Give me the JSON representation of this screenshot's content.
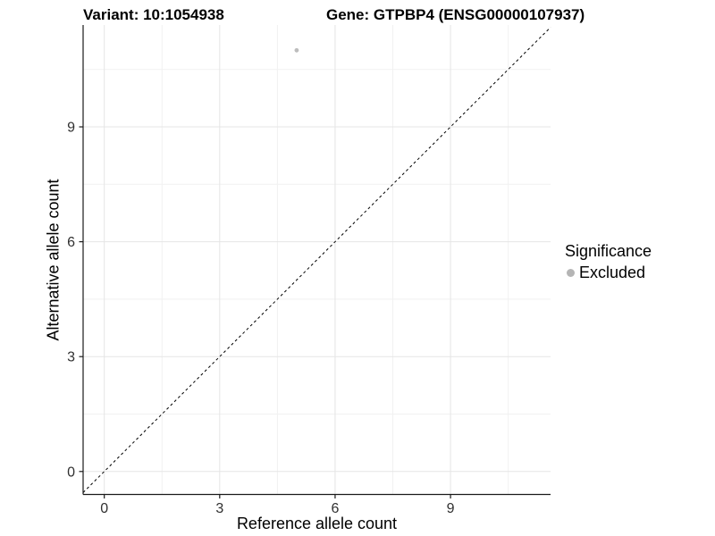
{
  "chart_data": {
    "type": "scatter",
    "title_left": "Variant: 10:1054938",
    "title_right": "Gene: GTPBP4 (ENSG00000107937)",
    "xlabel": "Reference allele count",
    "ylabel": "Alternative allele count",
    "xlim": [
      -0.55,
      11.6
    ],
    "ylim": [
      -0.6,
      11.66
    ],
    "xticks": [
      0,
      3,
      6,
      9
    ],
    "yticks": [
      0,
      3,
      6,
      9
    ],
    "minor_step": 1.5,
    "points": [
      {
        "x": 5,
        "y": 11,
        "significance": "Excluded",
        "color": "#bdbdbd"
      }
    ],
    "abline": {
      "slope": 1,
      "intercept": 0,
      "style": "dashed",
      "color": "#000000"
    },
    "legend": {
      "title": "Significance",
      "position": "right",
      "items": [
        {
          "label": "Excluded",
          "color": "#b5b5b5"
        }
      ]
    },
    "colors": {
      "grid_major": "#e5e5e5",
      "grid_minor": "#f1f1f1",
      "axis_line": "#1a1a1a",
      "tick_text": "#303030"
    }
  }
}
